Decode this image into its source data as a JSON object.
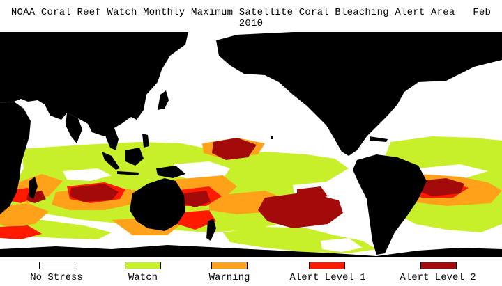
{
  "title": "NOAA Coral Reef Watch Monthly Maximum Satellite Coral Bleaching Alert Area",
  "date": "Feb 2010",
  "legend": {
    "items": [
      {
        "label": "No Stress",
        "color": "#ffffff"
      },
      {
        "label": "Watch",
        "color": "#c8f02a"
      },
      {
        "label": "Warning",
        "color": "#ffa21a"
      },
      {
        "label": "Alert Level 1",
        "color": "#ff1a00"
      },
      {
        "label": "Alert Level 2",
        "color": "#a30a0a"
      }
    ]
  },
  "colors": {
    "land": "#000000",
    "no_stress": "#ffffff",
    "watch": "#c8f02a",
    "warning": "#ffa21a",
    "alert1": "#ff1a00",
    "alert2": "#a30a0a"
  }
}
